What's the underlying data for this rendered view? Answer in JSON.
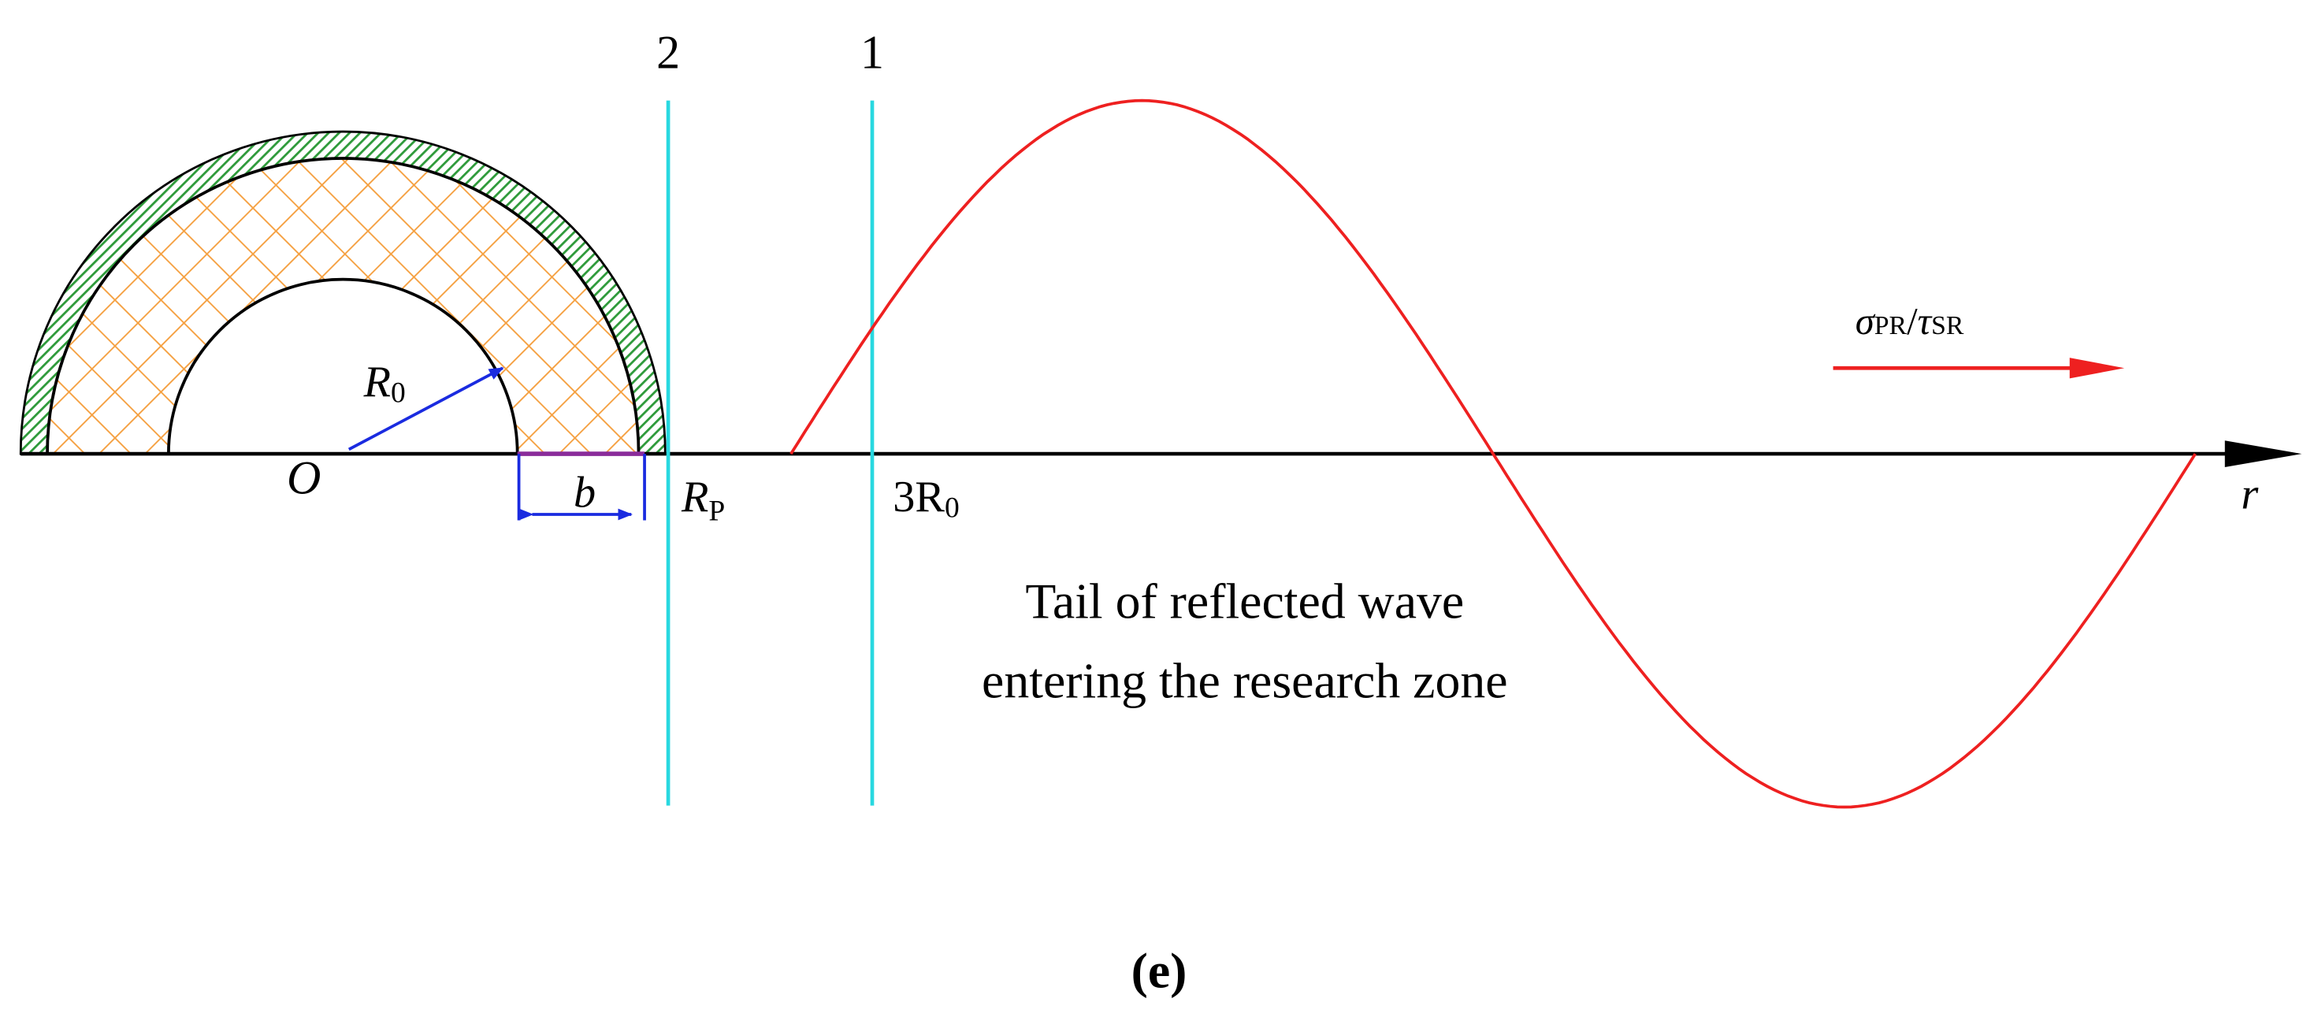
{
  "labels": {
    "line_2": "2",
    "line_1": "1",
    "radius": {
      "main": "R",
      "sub": "0"
    },
    "origin": "O",
    "width": "b",
    "plastic_radius": {
      "main": "R",
      "sub": "P"
    },
    "three_r0": {
      "main": "3R",
      "sub": "0"
    },
    "axis": "r",
    "wave": {
      "sigma": "σ",
      "sigma_sub": "PR",
      "slash": "/",
      "tau": "τ",
      "tau_sub": "SR"
    }
  },
  "annotation": {
    "line1": "Tail of reflected wave",
    "line2": "entering the research zone"
  },
  "caption": "(e)"
}
